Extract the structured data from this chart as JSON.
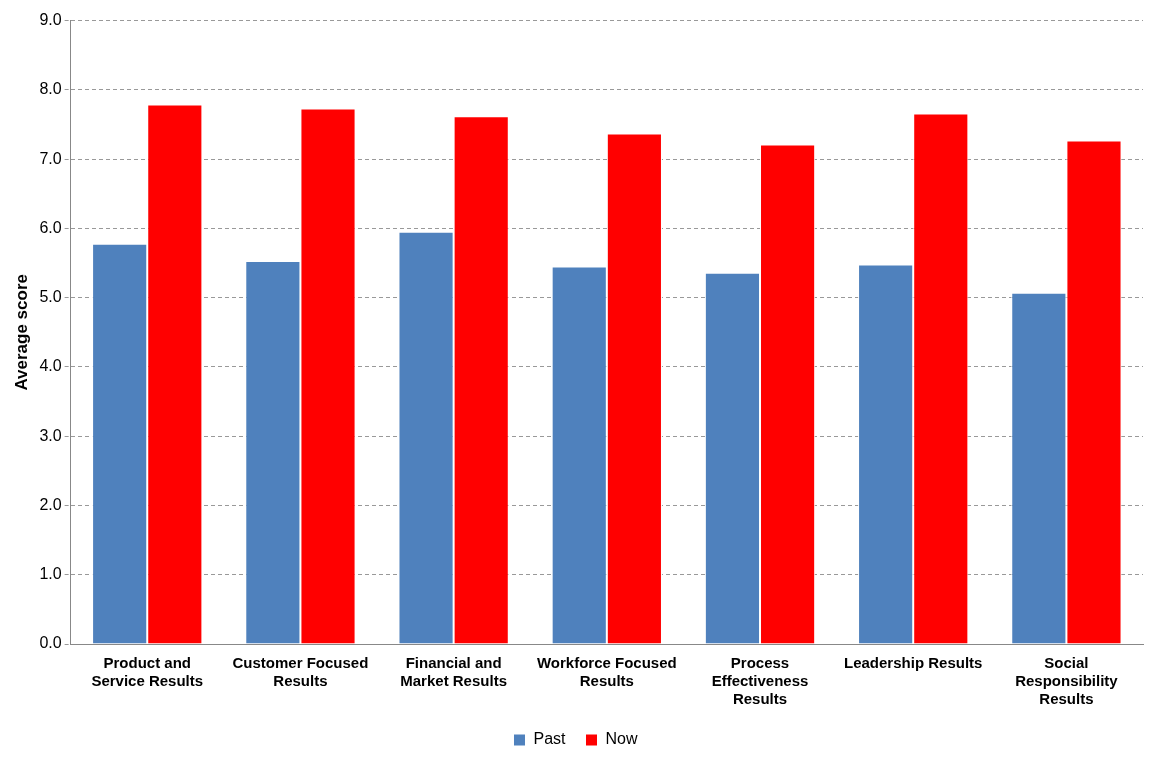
{
  "chart_data": {
    "type": "bar",
    "ylabel": "Average score",
    "categories": [
      "Product and Service Results",
      "Customer Focused Results",
      "Financial and Market Results",
      "Workforce Focused Results",
      "Process Effectiveness Results",
      "Leadership Results",
      "Social Responsibility Results"
    ],
    "series": [
      {
        "name": "Past",
        "color": "#4f81bd",
        "values": [
          5.78,
          5.53,
          5.95,
          5.45,
          5.36,
          5.48,
          5.07
        ]
      },
      {
        "name": "Now",
        "color": "#ff0000",
        "values": [
          7.79,
          7.73,
          7.62,
          7.37,
          7.21,
          7.66,
          7.27
        ]
      }
    ],
    "ylim": [
      0,
      9
    ],
    "yticks": [
      {
        "value": 0,
        "label": "0.0"
      },
      {
        "value": 1,
        "label": "1.0"
      },
      {
        "value": 2,
        "label": "2.0"
      },
      {
        "value": 3,
        "label": "3.0"
      },
      {
        "value": 4,
        "label": "4.0"
      },
      {
        "value": 5,
        "label": "5.0"
      },
      {
        "value": 6,
        "label": "6.0"
      },
      {
        "value": 7,
        "label": "7.0"
      },
      {
        "value": 8,
        "label": "8.0"
      },
      {
        "value": 9,
        "label": "9.0"
      }
    ],
    "grid": "y",
    "legend": "bottom"
  }
}
